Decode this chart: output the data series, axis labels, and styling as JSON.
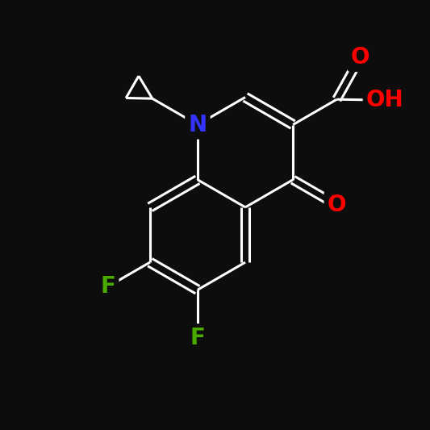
{
  "background_color": "#0d0d0d",
  "bond_color": "#ffffff",
  "atom_colors": {
    "O": "#ff0000",
    "N": "#3333ff",
    "F": "#4aaa00",
    "C": "#ffffff"
  },
  "bond_width": 2.2,
  "double_sep": 0.1,
  "font_size": 20,
  "figsize": [
    5.33,
    5.33
  ],
  "dpi": 100
}
